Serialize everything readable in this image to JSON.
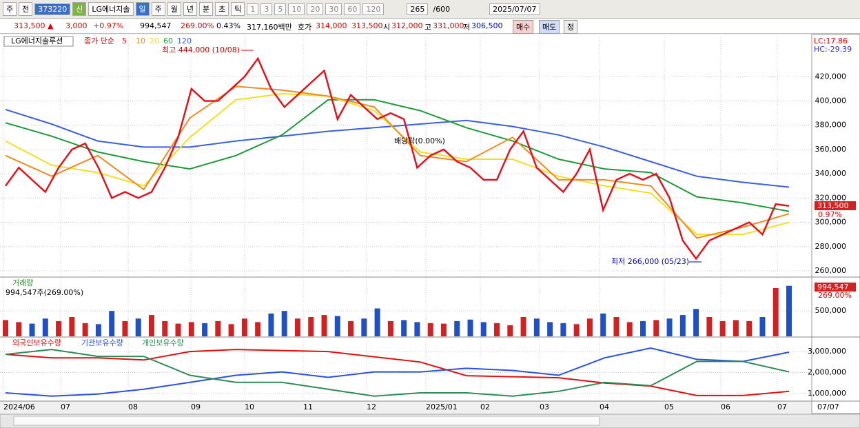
{
  "toolbar": {
    "labels": [
      "주",
      "전"
    ],
    "code": "373220",
    "badge": "신",
    "name": "LG에너지솔",
    "periods": [
      "일",
      "주",
      "월",
      "년",
      "분",
      "초",
      "틱"
    ],
    "intervals": [
      "1",
      "3",
      "5",
      "10",
      "20",
      "30",
      "60",
      "120"
    ],
    "count": "265",
    "max": "/600",
    "date": "2025/07/07"
  },
  "quote": {
    "items": [
      "313,500 ▲",
      "3,000",
      "+0.97%",
      "994,547",
      "269.00%",
      "0.43%",
      "317,160백만",
      "호가",
      "314,000",
      "313,500",
      "시",
      "312,000",
      "고",
      "331,000",
      "저",
      "306,500"
    ],
    "buttons": [
      "매수",
      "매도",
      "정"
    ]
  },
  "x_axis": {
    "labels": [
      "2024/06",
      "07",
      "08",
      "09",
      "10",
      "11",
      "12",
      "2025/01",
      "02",
      "03",
      "04",
      "05",
      "06",
      "07"
    ],
    "end": "07/07"
  },
  "chart_data": [
    {
      "type": "line",
      "title": "LG에너지솔루션",
      "legend_label": "종가 단순",
      "ylim": [
        256000,
        452000
      ],
      "yticks": [
        {
          "value": 260000,
          "label": "260,000"
        },
        {
          "value": 280000,
          "label": "280,000"
        },
        {
          "value": 300000,
          "label": "300,000"
        },
        {
          "value": 320000,
          "label": "320,000"
        },
        {
          "value": 340000,
          "label": "340,000"
        },
        {
          "value": 360000,
          "label": "360,000"
        },
        {
          "value": 380000,
          "label": "380,000"
        },
        {
          "value": 400000,
          "label": "400,000"
        },
        {
          "value": 420000,
          "label": "420,000"
        }
      ],
      "grid": true,
      "lc": "LC:17.86",
      "hc": "HC:-29.39",
      "last_label": "313,500",
      "change_label": "0.97%",
      "annotations": [
        "최고 444,000 (10/08)",
        "최저 266,000 (05/23)",
        "배당락(0.00%)"
      ],
      "series": [
        {
          "name": "120",
          "color": "#3a5fe0",
          "values": [
            393000,
            381000,
            367000,
            362000,
            362000,
            367000,
            371000,
            375000,
            378000,
            381000,
            384000,
            379000,
            372000,
            362000,
            350000,
            338000,
            333000,
            329000
          ]
        },
        {
          "name": "60",
          "color": "#1e9a3a",
          "values": [
            382000,
            371000,
            358000,
            350000,
            344000,
            355000,
            372000,
            401000,
            401000,
            392000,
            378000,
            367000,
            352000,
            344000,
            341000,
            321000,
            316000,
            309000
          ]
        },
        {
          "name": "20",
          "color": "#f0e020",
          "values": [
            367000,
            347000,
            341000,
            330000,
            370000,
            401000,
            406000,
            404000,
            392000,
            358000,
            352000,
            352000,
            338000,
            330000,
            324000,
            290000,
            290000,
            300000
          ]
        },
        {
          "name": "10",
          "color": "#f08a20",
          "values": [
            355000,
            338000,
            355000,
            327000,
            386000,
            412000,
            409000,
            404000,
            395000,
            355000,
            350000,
            370000,
            335000,
            335000,
            330000,
            287000,
            296000,
            307000
          ]
        },
        {
          "name": "5",
          "color": "#e0141e",
          "values": [
            330000,
            345000,
            335000,
            325000,
            345000,
            360000,
            365000,
            345000,
            320000,
            325000,
            320000,
            325000,
            345000,
            370000,
            410000,
            400000,
            400000,
            410000,
            420000,
            435000,
            410000,
            395000,
            405000,
            415000,
            425000,
            385000,
            405000,
            395000,
            385000,
            390000,
            385000,
            345000,
            355000,
            360000,
            350000,
            345000,
            335000,
            335000,
            360000,
            375000,
            345000,
            335000,
            325000,
            340000,
            360000,
            310000,
            335000,
            340000,
            335000,
            340000,
            320000,
            285000,
            270000,
            285000,
            290000,
            295000,
            300000,
            290000,
            315000,
            313500
          ]
        }
      ]
    },
    {
      "type": "bar",
      "title": "거래량",
      "subtitle": "994,547주(269.00%)",
      "ylim": [
        0,
        1140000
      ],
      "yticks": [
        {
          "value": 500000,
          "label": "500,000"
        }
      ],
      "last_label": "994,547",
      "ratio_label": "269.00%",
      "up_color": "#d42020",
      "down_color": "#2050c8",
      "values": [
        320000,
        280000,
        250000,
        350000,
        300000,
        380000,
        260000,
        240000,
        500000,
        300000,
        350000,
        420000,
        300000,
        250000,
        280000,
        260000,
        300000,
        240000,
        350000,
        280000,
        450000,
        500000,
        350000,
        380000,
        420000,
        400000,
        300000,
        350000,
        550000,
        300000,
        320000,
        280000,
        260000,
        250000,
        300000,
        330000,
        280000,
        260000,
        220000,
        380000,
        350000,
        280000,
        260000,
        240000,
        350000,
        450000,
        380000,
        280000,
        300000,
        320000,
        350000,
        420000,
        540000,
        380000,
        300000,
        320000,
        300000,
        380000,
        950000,
        994547
      ]
    },
    {
      "type": "line",
      "ylim": [
        700000,
        3630000
      ],
      "yticks": [
        {
          "value": 1000000,
          "label": "1,000,000"
        },
        {
          "value": 2000000,
          "label": "2,000,000"
        },
        {
          "value": 3000000,
          "label": "3,000,000"
        }
      ],
      "series": [
        {
          "name": "외국인보유수량",
          "color": "#e01010",
          "values": [
            2870000,
            2700000,
            2700000,
            2600000,
            3000000,
            3100000,
            3050000,
            3000000,
            2750000,
            2500000,
            1850000,
            1800000,
            1750000,
            1500000,
            1350000,
            900000,
            900000,
            1100000
          ]
        },
        {
          "name": "기관보유수량",
          "color": "#2a50e0",
          "values": [
            1030000,
            870000,
            970000,
            1200000,
            1530000,
            1870000,
            2030000,
            1770000,
            2030000,
            2030000,
            2200000,
            2100000,
            1870000,
            2700000,
            3170000,
            2630000,
            2530000,
            2970000
          ]
        },
        {
          "name": "개인보유수량",
          "color": "#2e8b57",
          "values": [
            2870000,
            3100000,
            2770000,
            2770000,
            1870000,
            1530000,
            1530000,
            1200000,
            870000,
            1030000,
            1030000,
            870000,
            1100000,
            1530000,
            1370000,
            2530000,
            2530000,
            2030000
          ]
        }
      ]
    }
  ]
}
